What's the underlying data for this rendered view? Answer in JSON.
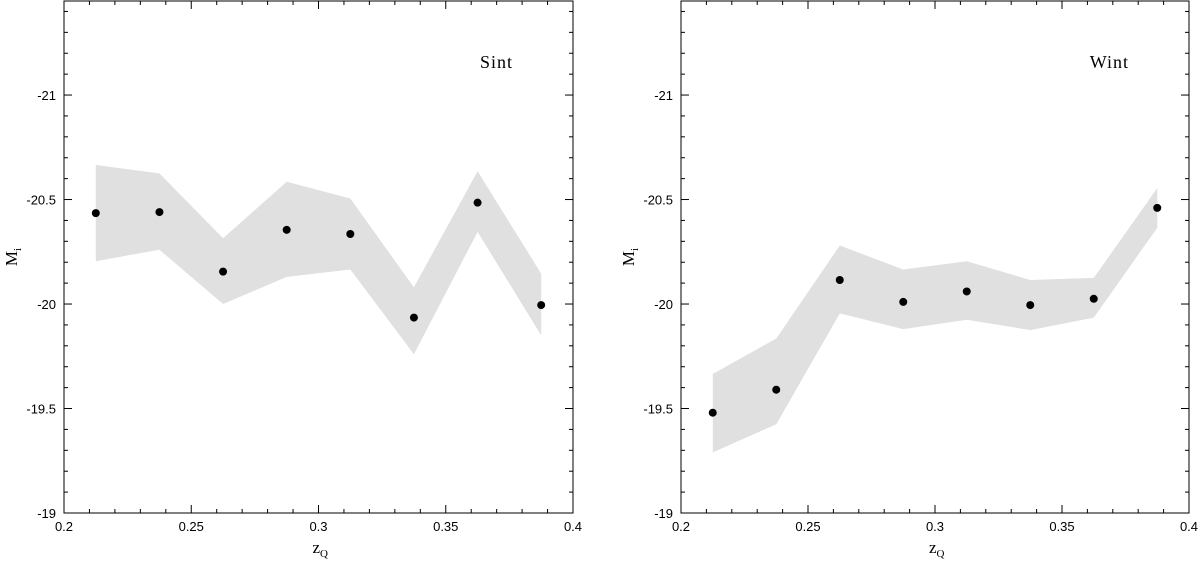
{
  "chart_data": [
    {
      "type": "scatter",
      "panel_label": "Sint",
      "xlabel": "z",
      "xlabel_sub": "Q",
      "ylabel": "M",
      "ylabel_sub": "i",
      "xlim": [
        0.2,
        0.4
      ],
      "ylim": [
        -19,
        -21.45
      ],
      "y_inverted": true,
      "x_ticks": [
        0.2,
        0.25,
        0.3,
        0.35,
        0.4
      ],
      "x_tick_labels": [
        "0.2",
        "0.25",
        "0.3",
        "0.35",
        "0.4"
      ],
      "y_ticks": [
        -21,
        -20.5,
        -20,
        -19.5,
        -19
      ],
      "y_tick_labels": [
        "-21",
        "-20.5",
        "-20",
        "-19.5",
        "-19"
      ],
      "x": [
        0.2125,
        0.2375,
        0.2625,
        0.2875,
        0.3125,
        0.3375,
        0.3625,
        0.3875
      ],
      "y": [
        -20.435,
        -20.44,
        -20.155,
        -20.355,
        -20.335,
        -19.935,
        -20.485,
        -19.995
      ],
      "band_upper": [
        -20.665,
        -20.625,
        -20.315,
        -20.585,
        -20.505,
        -20.08,
        -20.635,
        -20.145
      ],
      "band_lower": [
        -20.205,
        -20.26,
        -20.0,
        -20.13,
        -20.165,
        -19.76,
        -20.345,
        -19.85
      ],
      "grid": false,
      "band_color": "#e0e0e0",
      "point_color": "#000000"
    },
    {
      "type": "scatter",
      "panel_label": "Wint",
      "xlabel": "z",
      "xlabel_sub": "Q",
      "ylabel": "M",
      "ylabel_sub": "i",
      "xlim": [
        0.2,
        0.4
      ],
      "ylim": [
        -19,
        -21.45
      ],
      "y_inverted": true,
      "x_ticks": [
        0.2,
        0.25,
        0.3,
        0.35,
        0.4
      ],
      "x_tick_labels": [
        "0.2",
        "0.25",
        "0.3",
        "0.35",
        "0.4"
      ],
      "y_ticks": [
        -21,
        -20.5,
        -20,
        -19.5,
        -19
      ],
      "y_tick_labels": [
        "-21",
        "-20.5",
        "-20",
        "-19.5",
        "-19"
      ],
      "x": [
        0.2125,
        0.2375,
        0.2625,
        0.2875,
        0.3125,
        0.3375,
        0.3625,
        0.3875
      ],
      "y": [
        -19.48,
        -19.59,
        -20.115,
        -20.01,
        -20.06,
        -19.995,
        -20.025,
        -20.46
      ],
      "band_upper": [
        -19.665,
        -19.835,
        -20.28,
        -20.165,
        -20.205,
        -20.115,
        -20.125,
        -20.555
      ],
      "band_lower": [
        -19.29,
        -19.425,
        -19.955,
        -19.88,
        -19.925,
        -19.875,
        -19.935,
        -20.365
      ],
      "grid": false,
      "band_color": "#e0e0e0",
      "point_color": "#000000"
    }
  ]
}
